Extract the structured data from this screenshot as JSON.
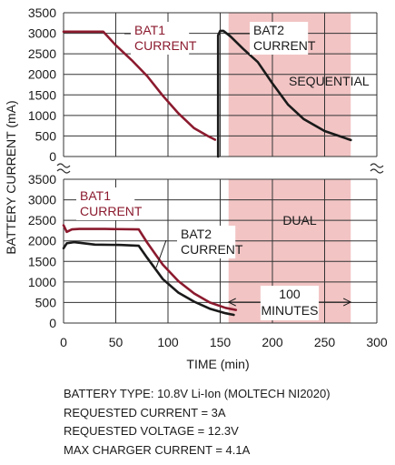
{
  "chart_data": {
    "type": "line",
    "xlabel": "TIME (min)",
    "ylabel": "BATTERY CURRENT (mA)",
    "xlim": [
      0,
      300
    ],
    "x_ticks": [
      "0",
      "50",
      "100",
      "150",
      "200",
      "250",
      "300"
    ],
    "ylim": [
      0,
      3500
    ],
    "y_ticks": [
      "0",
      "500",
      "1000",
      "1500",
      "2000",
      "2500",
      "3000",
      "3500"
    ],
    "grid": true,
    "colors": {
      "bat1": "#8b1a2e",
      "bat2": "#1a1a1a",
      "shade": "#f2c4c4"
    },
    "panels": [
      {
        "mode_label": "SEQUENTIAL",
        "annotations": {
          "bat1": [
            "BAT1",
            "CURRENT"
          ],
          "bat2": [
            "BAT2",
            "CURRENT"
          ]
        },
        "series": [
          {
            "key": "bat1",
            "x": [
              0,
              38,
              50,
              65,
              80,
              95,
              110,
              125,
              138,
              145
            ],
            "y": [
              3040,
              3040,
              2710,
              2350,
              1960,
              1480,
              1050,
              690,
              500,
              410
            ]
          },
          {
            "key": "bat2",
            "x": [
              148,
              148,
              150,
              153,
              160,
              172,
              186,
              200,
              215,
              230,
              250,
              275
            ],
            "y": [
              0,
              2950,
              3060,
              3060,
              2920,
              2620,
              2300,
              1780,
              1260,
              910,
              620,
              400
            ]
          }
        ]
      },
      {
        "mode_label": "DUAL",
        "annotations": {
          "bat1": [
            "BAT1",
            "CURRENT"
          ],
          "bat2": [
            "BAT2",
            "CURRENT"
          ]
        },
        "bracket": [
          "100",
          "MINUTES"
        ],
        "series": [
          {
            "key": "bat1",
            "x": [
              0,
              3,
              8,
              15,
              40,
              72,
              80,
              95,
              110,
              125,
              140,
              155,
              165
            ],
            "y": [
              2380,
              2220,
              2280,
              2290,
              2290,
              2280,
              1960,
              1420,
              1020,
              720,
              500,
              370,
              320
            ]
          },
          {
            "key": "bat2",
            "x": [
              0,
              3,
              10,
              30,
              55,
              72,
              80,
              95,
              110,
              125,
              140,
              155,
              163
            ],
            "y": [
              1820,
              1940,
              1970,
              1910,
              1900,
              1880,
              1590,
              1070,
              740,
              520,
              350,
              240,
              200
            ]
          }
        ]
      }
    ]
  },
  "notes": [
    "BATTERY TYPE: 10.8V Li-Ion (MOLTECH NI2020)",
    "REQUESTED CURRENT = 3A",
    "REQUESTED VOLTAGE = 12.3V",
    "MAX CHARGER CURRENT = 4.1A"
  ]
}
